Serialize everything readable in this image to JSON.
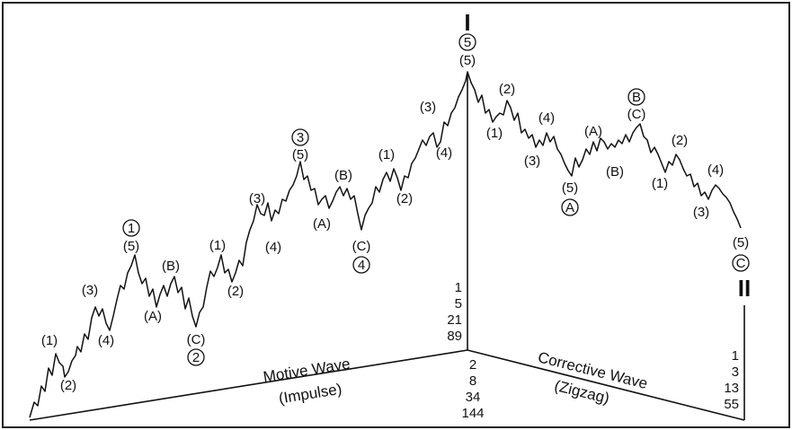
{
  "major_labels": {
    "top": "I",
    "right": "II"
  },
  "circled": [
    "1",
    "2",
    "3",
    "4",
    "5",
    "A",
    "B",
    "C"
  ],
  "wave_labels": {
    "w1": "(1)",
    "w2": "(2)",
    "w3": "(3)",
    "w4": "(4)",
    "w5": "(5)",
    "wa": "(A)",
    "wb": "(B)",
    "wc": "(C)"
  },
  "impulse_numbers": [
    "1",
    "5",
    "21",
    "89"
  ],
  "impulse_corrective_numbers": [
    "2",
    "8",
    "34",
    "144"
  ],
  "zigzag_numbers": [
    "1",
    "3",
    "13",
    "55"
  ],
  "captions": {
    "motive": "Motive Wave",
    "impulse": "(Impulse)",
    "corrective": "Corrective Wave",
    "zigzag": "(Zigzag)"
  }
}
